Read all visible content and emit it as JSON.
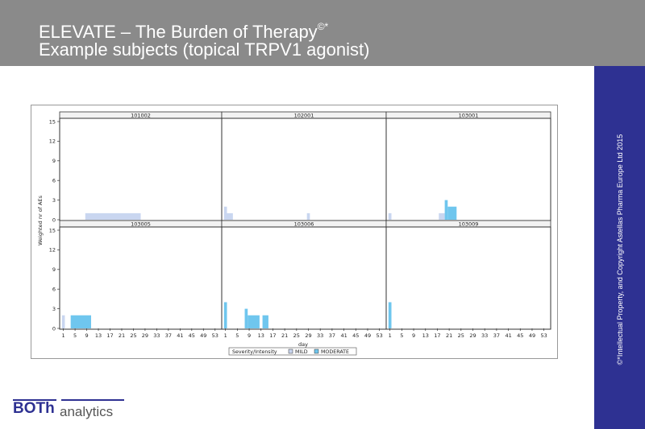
{
  "slide": {
    "title_line1": "ELEVATE – The Burden of Therapy",
    "title_mark": "©*",
    "title_line2": "Example subjects (topical TRPV1 agonist)",
    "copyright": "©*Intellectual Property, and Copyright Astellas Pharma Europe Ltd 2015"
  },
  "logo": {
    "part1": "BOTh",
    "part2": "analytics"
  },
  "colors": {
    "header_bg": "#8a8a8a",
    "sidebar_bg": "#2e3192",
    "mild": "#c9d6f0",
    "moderate": "#6fc6ee"
  },
  "chart_data": {
    "type": "bar",
    "layout": "panel-grid-2x3",
    "ylabel": "Weighted nr of AEs",
    "xlabel": "day",
    "x_ticks": [
      1,
      5,
      9,
      13,
      17,
      21,
      25,
      29,
      33,
      37,
      41,
      45,
      49,
      53
    ],
    "y_ticks": [
      0,
      3,
      6,
      9,
      12,
      15
    ],
    "xlim": [
      0,
      55
    ],
    "ylim": [
      0,
      15
    ],
    "legend": {
      "title": "Severity/Intensity",
      "entries": [
        "MILD",
        "MODERATE"
      ],
      "placement": "bottom-center"
    },
    "panels": [
      {
        "id": "101002",
        "bars": [
          {
            "severity": "MILD",
            "from": 9,
            "to": 27,
            "value": 1
          }
        ]
      },
      {
        "id": "102001",
        "bars": [
          {
            "severity": "MILD",
            "from": 1,
            "to": 1,
            "value": 2
          },
          {
            "severity": "MILD",
            "from": 2,
            "to": 3,
            "value": 1
          },
          {
            "severity": "MILD",
            "from": 29,
            "to": 29,
            "value": 1
          }
        ]
      },
      {
        "id": "103001",
        "bars": [
          {
            "severity": "MILD",
            "from": 1,
            "to": 1,
            "value": 1
          },
          {
            "severity": "MILD",
            "from": 18,
            "to": 19,
            "value": 1
          },
          {
            "severity": "MODERATE",
            "from": 20,
            "to": 20,
            "value": 3
          },
          {
            "severity": "MODERATE",
            "from": 21,
            "to": 23,
            "value": 2
          }
        ]
      },
      {
        "id": "103005",
        "bars": [
          {
            "severity": "MILD",
            "from": 1,
            "to": 1,
            "value": 2
          },
          {
            "severity": "MODERATE",
            "from": 4,
            "to": 10,
            "value": 2
          }
        ]
      },
      {
        "id": "103006",
        "bars": [
          {
            "severity": "MODERATE",
            "from": 1,
            "to": 1,
            "value": 4
          },
          {
            "severity": "MODERATE",
            "from": 8,
            "to": 8,
            "value": 3
          },
          {
            "severity": "MILD",
            "from": 9,
            "to": 9,
            "value": 1
          },
          {
            "severity": "MODERATE",
            "from": 9,
            "to": 12,
            "value": 2
          },
          {
            "severity": "MODERATE",
            "from": 14,
            "to": 15,
            "value": 2
          }
        ]
      },
      {
        "id": "103009",
        "bars": [
          {
            "severity": "MODERATE",
            "from": 1,
            "to": 1,
            "value": 4
          }
        ]
      }
    ]
  }
}
